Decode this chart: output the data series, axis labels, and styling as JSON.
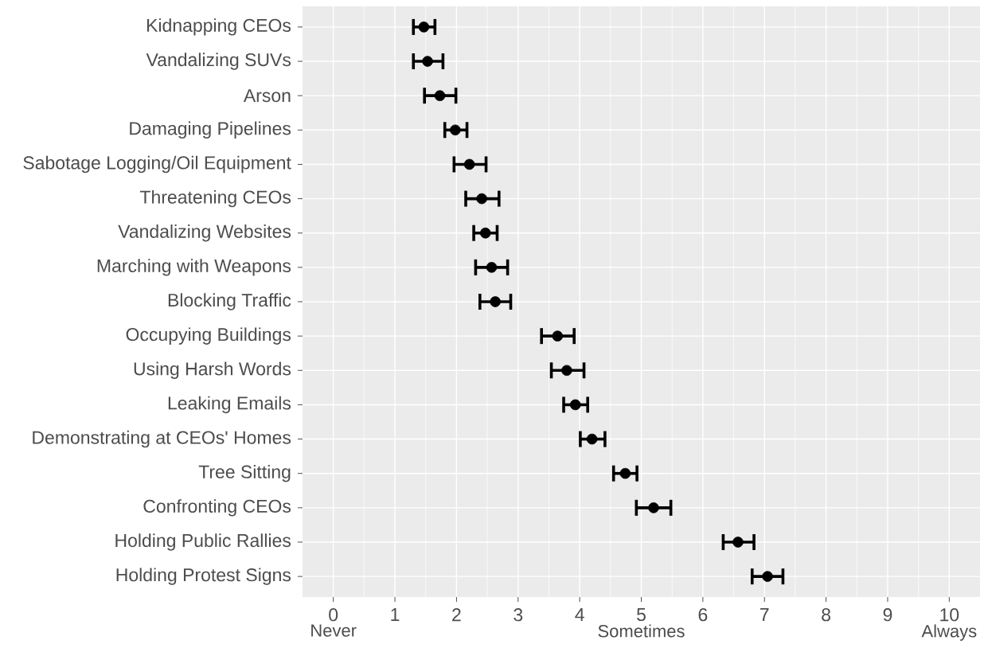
{
  "chart_data": {
    "type": "scatter",
    "orientation": "horizontal",
    "categories": [
      "Kidnapping CEOs",
      "Vandalizing SUVs",
      "Arson",
      "Damaging Pipelines",
      "Sabotage Logging/Oil Equipment",
      "Threatening CEOs",
      "Vandalizing Websites",
      "Marching with Weapons",
      "Blocking Traffic",
      "Occupying Buildings",
      "Using Harsh Words",
      "Leaking Emails",
      "Demonstrating at CEOs' Homes",
      "Tree Sitting",
      "Confronting CEOs",
      "Holding Public Rallies",
      "Holding Protest Signs"
    ],
    "values": [
      1.47,
      1.53,
      1.73,
      1.98,
      2.21,
      2.41,
      2.47,
      2.57,
      2.63,
      3.64,
      3.79,
      3.93,
      4.2,
      4.74,
      5.2,
      6.57,
      7.05
    ],
    "errors": [
      [
        1.3,
        1.65
      ],
      [
        1.3,
        1.78
      ],
      [
        1.48,
        1.99
      ],
      [
        1.81,
        2.17
      ],
      [
        1.96,
        2.48
      ],
      [
        2.15,
        2.69
      ],
      [
        2.28,
        2.66
      ],
      [
        2.31,
        2.83
      ],
      [
        2.38,
        2.88
      ],
      [
        3.38,
        3.91
      ],
      [
        3.54,
        4.07
      ],
      [
        3.74,
        4.13
      ],
      [
        4.01,
        4.41
      ],
      [
        4.55,
        4.93
      ],
      [
        4.92,
        5.48
      ],
      [
        6.33,
        6.83
      ],
      [
        6.8,
        7.3
      ]
    ],
    "color": "#000000",
    "marker": "circle",
    "xlim": [
      -0.5,
      10.5
    ],
    "xticks": [
      0,
      1,
      2,
      3,
      4,
      5,
      6,
      7,
      8,
      9,
      10
    ],
    "grid": true,
    "annotations": [
      "Never",
      "Sometimes",
      "Always"
    ]
  }
}
